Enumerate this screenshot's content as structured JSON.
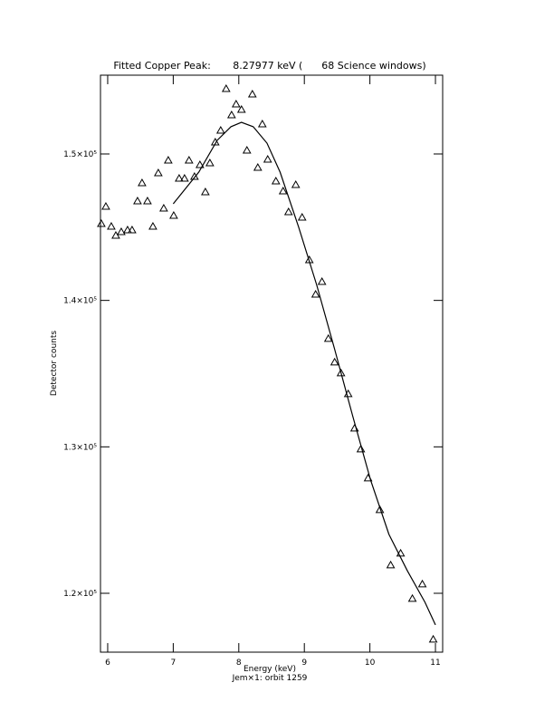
{
  "chart_data": {
    "type": "scatter",
    "title": "Fitted Copper Peak:       8.27977 keV (      68 Science windows)",
    "xlabel": "Energy (keV)",
    "subtitle": "Jem×1: orbit 1259",
    "ylabel": "Detector counts",
    "xlim": [
      5.89,
      11.11
    ],
    "ylim": [
      115980,
      155380
    ],
    "xticks": [
      6,
      7,
      8,
      9,
      10,
      11
    ],
    "yticks": [
      {
        "value": 120000,
        "label": "1.2×10⁵"
      },
      {
        "value": 130000,
        "label": "1.3×10⁵"
      },
      {
        "value": 140000,
        "label": "1.4×10⁵"
      },
      {
        "value": 150000,
        "label": "1.5×10⁵"
      }
    ],
    "series": [
      {
        "style": "markers",
        "color": "#000000",
        "x": [
          5.903,
          5.972,
          6.055,
          6.124,
          6.207,
          6.303,
          6.372,
          6.455,
          6.524,
          6.607,
          6.69,
          6.772,
          6.855,
          6.924,
          7.007,
          7.09,
          7.172,
          7.241,
          7.324,
          7.407,
          7.49,
          7.559,
          7.641,
          7.724,
          7.807,
          7.89,
          7.959,
          8.041,
          8.124,
          8.207,
          8.29,
          8.359,
          8.441,
          8.566,
          8.676,
          8.759,
          8.869,
          8.966,
          9.076,
          9.172,
          9.269,
          9.366,
          9.462,
          9.559,
          9.669,
          9.766,
          9.862,
          9.972,
          10.152,
          10.317,
          10.469,
          10.648,
          10.8,
          10.966
        ],
        "values": [
          145238,
          146413,
          145053,
          144434,
          144682,
          144805,
          144805,
          146784,
          148021,
          146784,
          145053,
          148701,
          146290,
          149567,
          145795,
          148330,
          148330,
          149567,
          148454,
          149258,
          147403,
          149382,
          150804,
          151608,
          154452,
          152659,
          153401,
          153030,
          150247,
          154082,
          149072,
          152041,
          149629,
          148145,
          147465,
          146042,
          147897,
          145671,
          142765,
          140415,
          141281,
          137385,
          135777,
          135035,
          133612,
          131262,
          129840,
          127861,
          125697,
          121925,
          122729,
          119637,
          120626,
          116854
        ]
      },
      {
        "style": "line",
        "color": "#000000",
        "x": [
          7.0,
          7.39,
          7.67,
          7.88,
          8.04,
          8.22,
          8.43,
          8.63,
          8.91,
          9.19,
          9.46,
          9.74,
          10.01,
          10.29,
          10.57,
          10.84,
          11.0
        ],
        "values": [
          146600,
          148760,
          150930,
          151860,
          152160,
          151860,
          150740,
          148760,
          145050,
          141030,
          136700,
          132070,
          127740,
          124030,
          121550,
          119390,
          117840
        ]
      }
    ]
  }
}
